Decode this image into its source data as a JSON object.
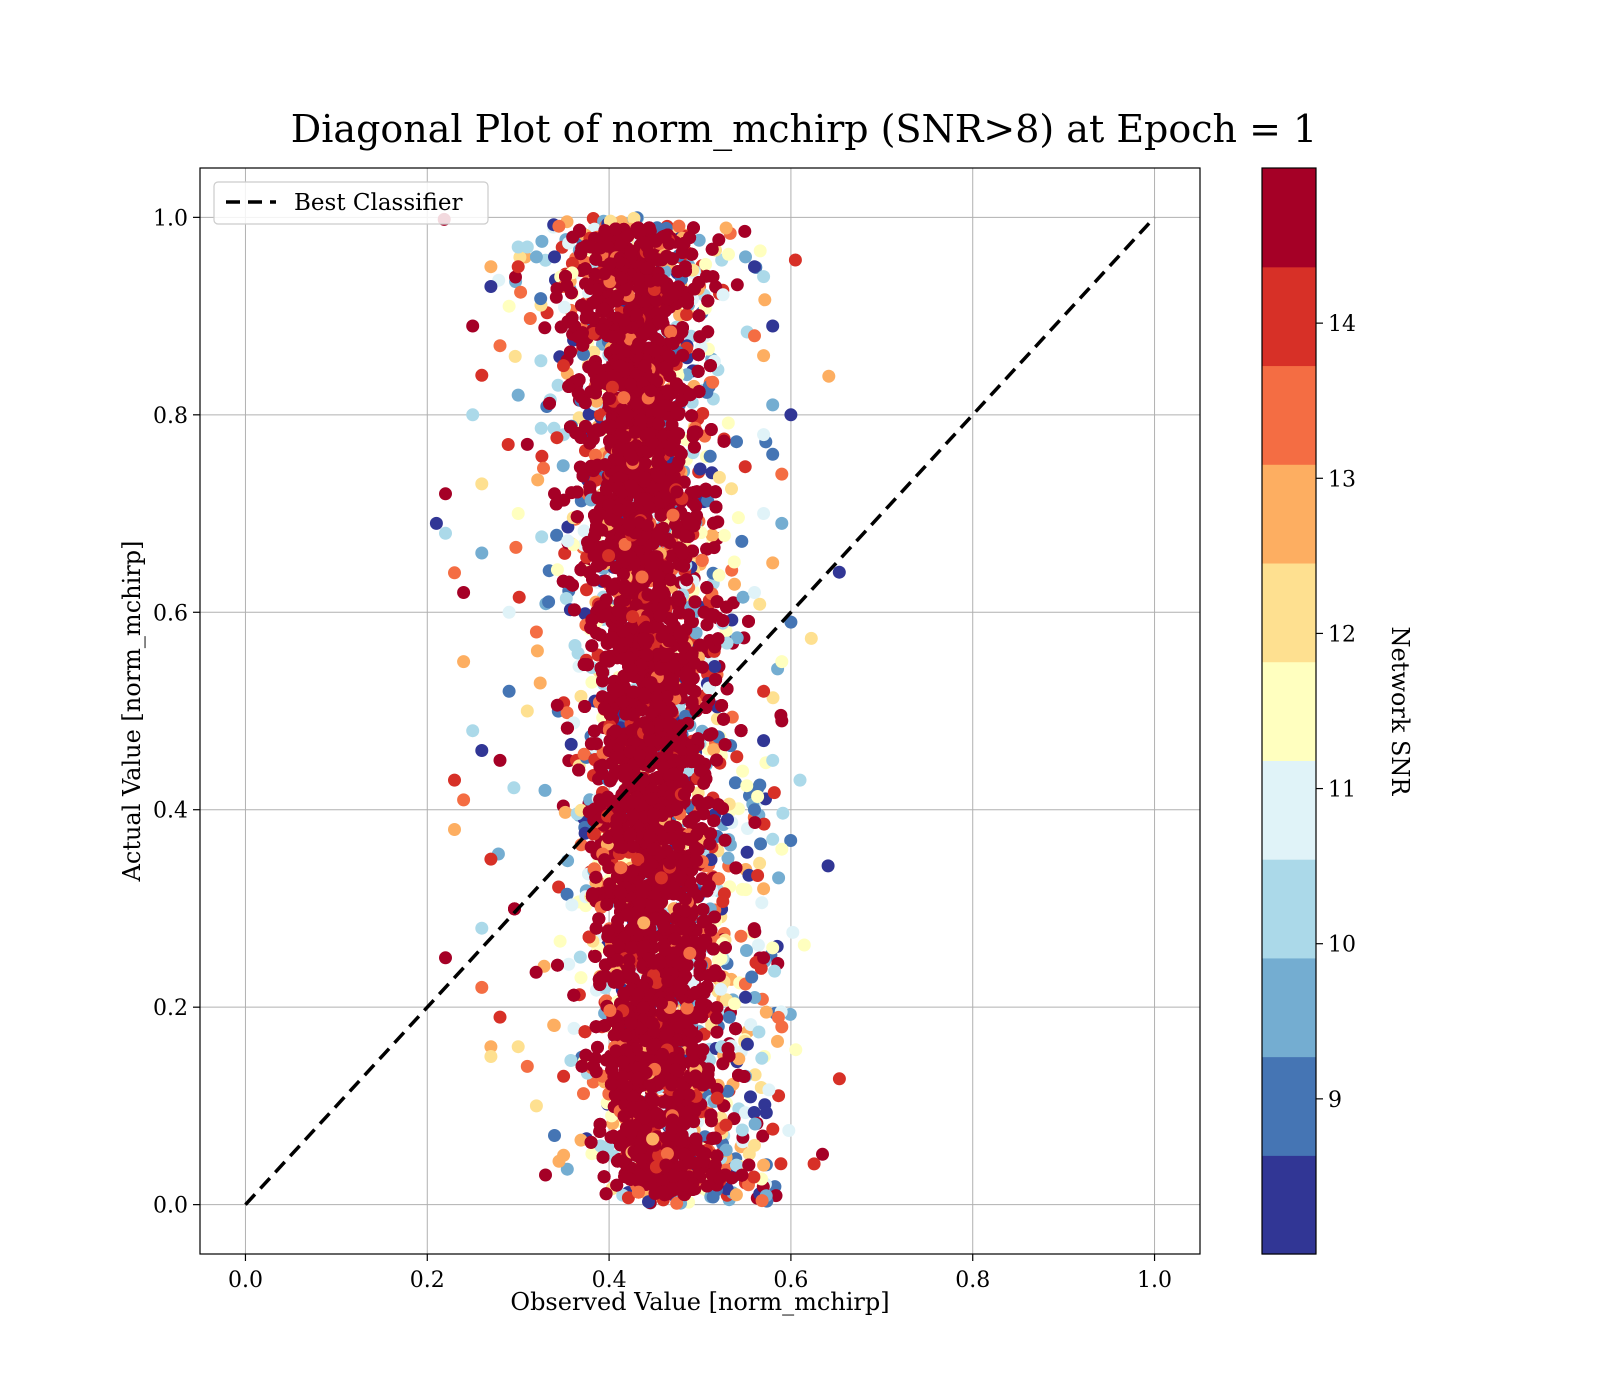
{
  "chart_data": {
    "type": "scatter",
    "title": "Diagonal Plot of norm_mchirp (SNR>8) at Epoch = 1",
    "xlabel": "Observed Value [norm_mchirp]",
    "ylabel": "Actual Value [norm_mchirp]",
    "xlim": [
      -0.05,
      1.05
    ],
    "ylim": [
      -0.05,
      1.05
    ],
    "xticks": [
      "0.0",
      "0.2",
      "0.4",
      "0.6",
      "0.8",
      "1.0"
    ],
    "yticks": [
      "0.0",
      "0.2",
      "0.4",
      "0.6",
      "0.8",
      "1.0"
    ],
    "grid": true,
    "legend": {
      "position": "top-left",
      "entries": [
        "Best Classifier"
      ]
    },
    "reference_line": {
      "name": "Best Classifier",
      "x": [
        0,
        1
      ],
      "y": [
        0,
        1
      ],
      "style": "dashed",
      "color": "#000000"
    },
    "colorbar": {
      "label": "Network SNR",
      "range": [
        8,
        15
      ],
      "ticks": [
        "9",
        "10",
        "11",
        "12",
        "13",
        "14"
      ],
      "colors": [
        "#313695",
        "#4575b4",
        "#74add1",
        "#abd9e9",
        "#e0f3f8",
        "#ffffbf",
        "#fee090",
        "#fdae61",
        "#f46d43",
        "#d73027",
        "#a50026"
      ]
    },
    "points": [
      [
        0.21,
        0.69,
        8.3
      ],
      [
        0.22,
        0.68,
        10.2
      ],
      [
        0.22,
        0.72,
        14.6
      ],
      [
        0.23,
        0.64,
        13.1
      ],
      [
        0.22,
        0.25,
        14.5
      ],
      [
        0.24,
        0.55,
        12.8
      ],
      [
        0.24,
        0.41,
        13.5
      ],
      [
        0.23,
        0.38,
        12.6
      ],
      [
        0.25,
        0.8,
        10.1
      ],
      [
        0.25,
        0.89,
        14.7
      ],
      [
        0.26,
        0.84,
        13.8
      ],
      [
        0.26,
        0.66,
        9.4
      ],
      [
        0.27,
        0.93,
        8.4
      ],
      [
        0.27,
        0.95,
        12.9
      ],
      [
        0.28,
        0.87,
        13.2
      ],
      [
        0.29,
        0.91,
        11.2
      ],
      [
        0.3,
        0.97,
        10.4
      ],
      [
        0.3,
        0.95,
        14.2
      ],
      [
        0.31,
        0.97,
        10.5
      ],
      [
        0.32,
        0.96,
        9.8
      ],
      [
        0.34,
        0.96,
        8.5
      ],
      [
        0.35,
        0.93,
        13.5
      ],
      [
        0.36,
        0.98,
        14.8
      ],
      [
        0.34,
        0.72,
        14.6
      ],
      [
        0.26,
        0.73,
        12.4
      ],
      [
        0.25,
        0.48,
        10.4
      ],
      [
        0.26,
        0.46,
        8.6
      ],
      [
        0.27,
        0.35,
        13.9
      ],
      [
        0.26,
        0.28,
        10.1
      ],
      [
        0.26,
        0.22,
        13.4
      ],
      [
        0.27,
        0.16,
        13.0
      ],
      [
        0.27,
        0.15,
        12.4
      ],
      [
        0.28,
        0.19,
        14.3
      ],
      [
        0.3,
        0.16,
        12.1
      ],
      [
        0.31,
        0.14,
        13.6
      ],
      [
        0.32,
        0.1,
        12.3
      ],
      [
        0.33,
        0.03,
        14.9
      ],
      [
        0.34,
        0.07,
        9.2
      ],
      [
        0.35,
        0.05,
        12.7
      ],
      [
        0.35,
        0.13,
        14.0
      ],
      [
        0.24,
        0.62,
        14.9
      ],
      [
        0.23,
        0.43,
        13.8
      ],
      [
        0.28,
        0.45,
        14.7
      ],
      [
        0.29,
        0.6,
        10.8
      ],
      [
        0.3,
        0.7,
        11.4
      ],
      [
        0.31,
        0.5,
        12.2
      ],
      [
        0.29,
        0.52,
        8.9
      ],
      [
        0.32,
        0.58,
        13.3
      ],
      [
        0.31,
        0.77,
        14.4
      ],
      [
        0.3,
        0.82,
        9.9
      ],
      [
        0.55,
        0.96,
        9.6
      ],
      [
        0.56,
        0.95,
        8.3
      ],
      [
        0.57,
        0.94,
        10.3
      ],
      [
        0.58,
        0.89,
        8.2
      ],
      [
        0.57,
        0.86,
        12.5
      ],
      [
        0.58,
        0.81,
        9.4
      ],
      [
        0.6,
        0.8,
        8.2
      ],
      [
        0.58,
        0.76,
        9.0
      ],
      [
        0.59,
        0.74,
        13.2
      ],
      [
        0.59,
        0.69,
        9.3
      ],
      [
        0.57,
        0.7,
        11.0
      ],
      [
        0.58,
        0.65,
        12.7
      ],
      [
        0.6,
        0.59,
        9.1
      ],
      [
        0.59,
        0.55,
        11.5
      ],
      [
        0.59,
        0.49,
        14.6
      ],
      [
        0.58,
        0.45,
        10.3
      ],
      [
        0.61,
        0.43,
        10.4
      ],
      [
        0.57,
        0.47,
        8.5
      ],
      [
        0.58,
        0.37,
        10.2
      ],
      [
        0.59,
        0.36,
        11.6
      ],
      [
        0.57,
        0.32,
        12.8
      ],
      [
        0.58,
        0.26,
        11.4
      ],
      [
        0.57,
        0.25,
        14.8
      ],
      [
        0.59,
        0.18,
        13.6
      ],
      [
        0.55,
        0.21,
        8.6
      ],
      [
        0.57,
        0.04,
        12.9
      ],
      [
        0.56,
        0.06,
        11.9
      ],
      [
        0.55,
        0.13,
        9.4
      ],
      [
        0.54,
        0.04,
        10.3
      ],
      [
        0.54,
        0.01,
        12.6
      ],
      [
        0.56,
        0.4,
        9.2
      ],
      [
        0.57,
        0.52,
        13.9
      ],
      [
        0.56,
        0.62,
        10.7
      ],
      [
        0.57,
        0.78,
        11.1
      ],
      [
        0.56,
        0.88,
        13.7
      ]
    ]
  }
}
